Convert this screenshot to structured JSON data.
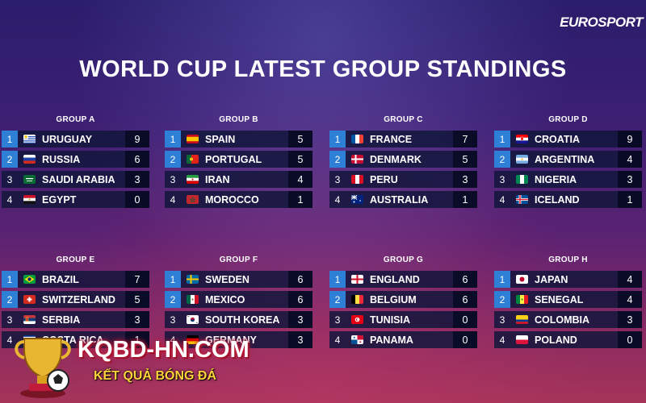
{
  "logo": "EUROSPORT",
  "title": "WORLD CUP LATEST GROUP STANDINGS",
  "groups": [
    {
      "name": "GROUP A",
      "rows": [
        {
          "rank": "1",
          "team": "URUGUAY",
          "pts": "9",
          "flag": "uruguay"
        },
        {
          "rank": "2",
          "team": "RUSSIA",
          "pts": "6",
          "flag": "russia"
        },
        {
          "rank": "3",
          "team": "SAUDI ARABIA",
          "pts": "3",
          "flag": "saudi"
        },
        {
          "rank": "4",
          "team": "EGYPT",
          "pts": "0",
          "flag": "egypt"
        }
      ]
    },
    {
      "name": "GROUP B",
      "rows": [
        {
          "rank": "1",
          "team": "SPAIN",
          "pts": "5",
          "flag": "spain"
        },
        {
          "rank": "2",
          "team": "PORTUGAL",
          "pts": "5",
          "flag": "portugal"
        },
        {
          "rank": "3",
          "team": "IRAN",
          "pts": "4",
          "flag": "iran"
        },
        {
          "rank": "4",
          "team": "MOROCCO",
          "pts": "1",
          "flag": "morocco"
        }
      ]
    },
    {
      "name": "GROUP C",
      "rows": [
        {
          "rank": "1",
          "team": "FRANCE",
          "pts": "7",
          "flag": "france"
        },
        {
          "rank": "2",
          "team": "DENMARK",
          "pts": "5",
          "flag": "denmark"
        },
        {
          "rank": "3",
          "team": "PERU",
          "pts": "3",
          "flag": "peru"
        },
        {
          "rank": "4",
          "team": "AUSTRALIA",
          "pts": "1",
          "flag": "australia"
        }
      ]
    },
    {
      "name": "GROUP D",
      "rows": [
        {
          "rank": "1",
          "team": "CROATIA",
          "pts": "9",
          "flag": "croatia"
        },
        {
          "rank": "2",
          "team": "ARGENTINA",
          "pts": "4",
          "flag": "argentina"
        },
        {
          "rank": "3",
          "team": "NIGERIA",
          "pts": "3",
          "flag": "nigeria"
        },
        {
          "rank": "4",
          "team": "ICELAND",
          "pts": "1",
          "flag": "iceland"
        }
      ]
    },
    {
      "name": "GROUP E",
      "rows": [
        {
          "rank": "1",
          "team": "BRAZIL",
          "pts": "7",
          "flag": "brazil"
        },
        {
          "rank": "2",
          "team": "SWITZERLAND",
          "pts": "5",
          "flag": "switzerland"
        },
        {
          "rank": "3",
          "team": "SERBIA",
          "pts": "3",
          "flag": "serbia"
        },
        {
          "rank": "4",
          "team": "COSTA RICA",
          "pts": "1",
          "flag": "costarica"
        }
      ]
    },
    {
      "name": "GROUP F",
      "rows": [
        {
          "rank": "1",
          "team": "SWEDEN",
          "pts": "6",
          "flag": "sweden"
        },
        {
          "rank": "2",
          "team": "MEXICO",
          "pts": "6",
          "flag": "mexico"
        },
        {
          "rank": "3",
          "team": "SOUTH KOREA",
          "pts": "3",
          "flag": "korea"
        },
        {
          "rank": "4",
          "team": "GERMANY",
          "pts": "3",
          "flag": "germany"
        }
      ]
    },
    {
      "name": "GROUP G",
      "rows": [
        {
          "rank": "1",
          "team": "ENGLAND",
          "pts": "6",
          "flag": "england"
        },
        {
          "rank": "2",
          "team": "BELGIUM",
          "pts": "6",
          "flag": "belgium"
        },
        {
          "rank": "3",
          "team": "TUNISIA",
          "pts": "0",
          "flag": "tunisia"
        },
        {
          "rank": "4",
          "team": "PANAMA",
          "pts": "0",
          "flag": "panama"
        }
      ]
    },
    {
      "name": "GROUP H",
      "rows": [
        {
          "rank": "1",
          "team": "JAPAN",
          "pts": "4",
          "flag": "japan"
        },
        {
          "rank": "2",
          "team": "SENEGAL",
          "pts": "4",
          "flag": "senegal"
        },
        {
          "rank": "3",
          "team": "COLOMBIA",
          "pts": "3",
          "flag": "colombia"
        },
        {
          "rank": "4",
          "team": "POLAND",
          "pts": "0",
          "flag": "poland"
        }
      ]
    }
  ],
  "watermark": {
    "site": "KQBD-HN.COM",
    "tagline": "KẾT QUẢ BÓNG ĐÁ"
  }
}
